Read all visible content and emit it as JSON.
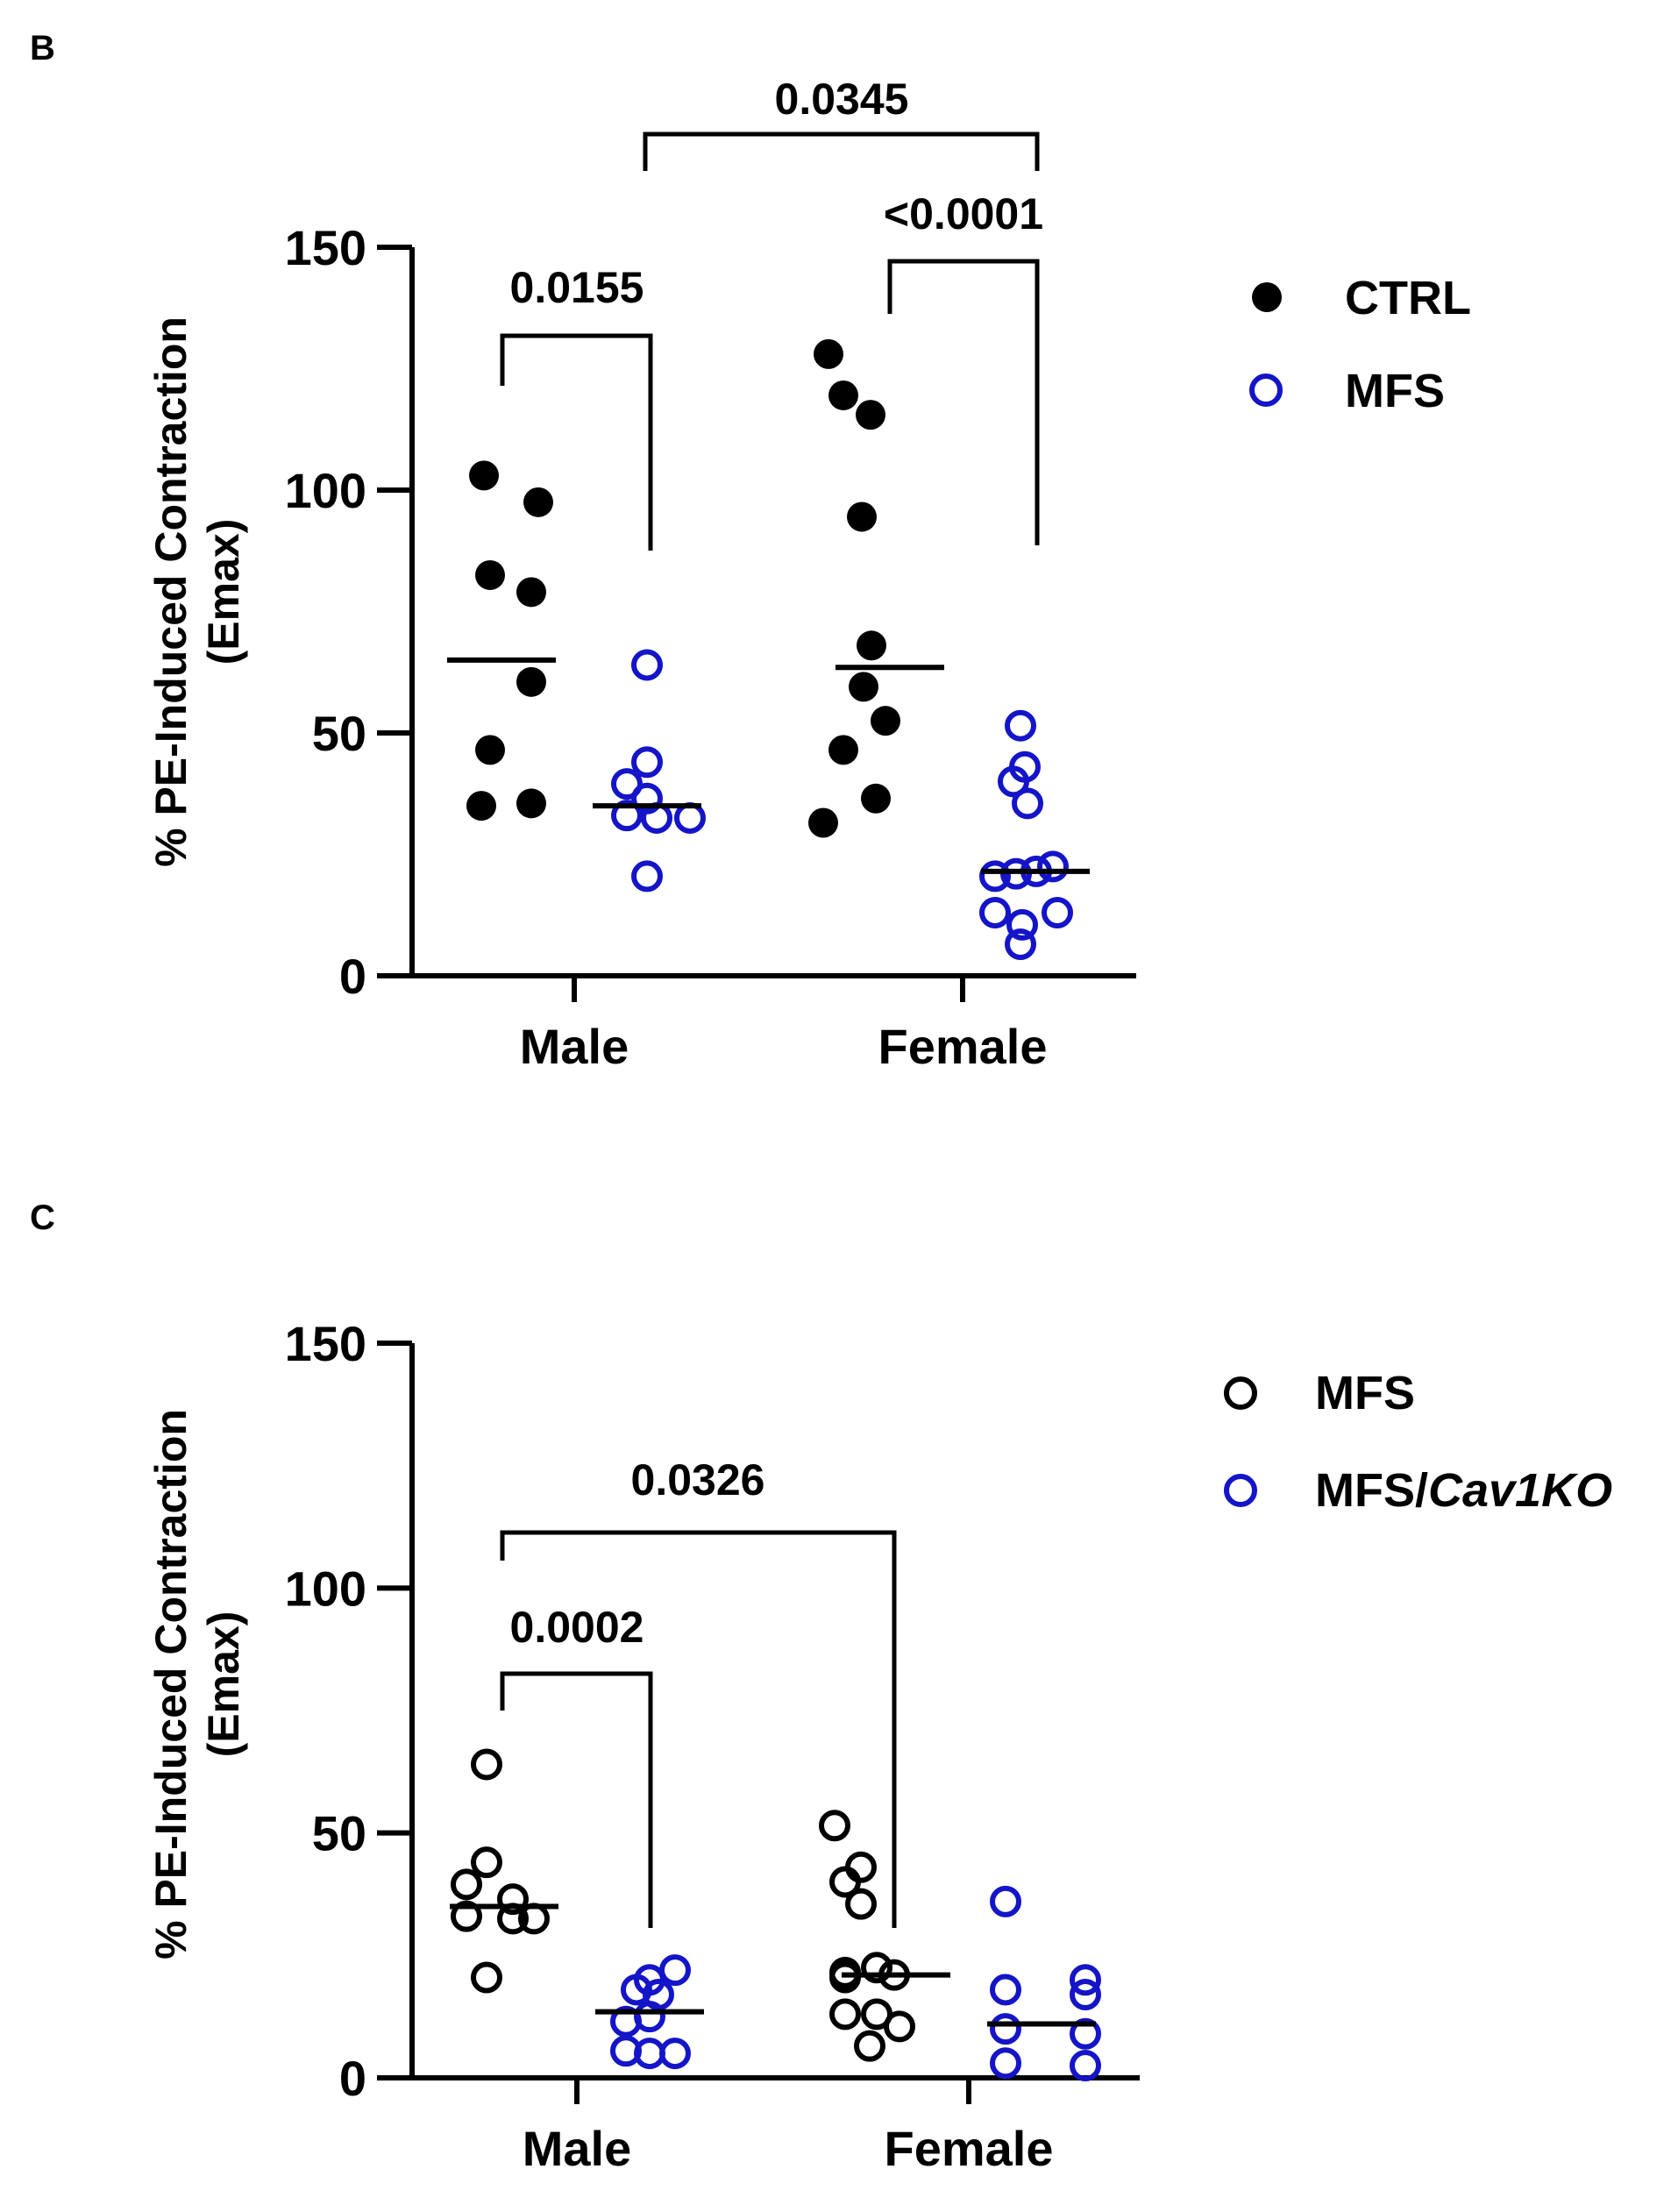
{
  "chart_data": [
    {
      "panel_label": "B",
      "type": "scatter",
      "ylabel_line1": "% PE-Induced Contraction",
      "ylabel_line2": "(Emax)",
      "ylim": [
        0,
        150
      ],
      "yticks": [
        0,
        50,
        100,
        150
      ],
      "categories": [
        "Male",
        "Female"
      ],
      "series": [
        {
          "name": "CTRL",
          "style": "filled",
          "color": "#000000",
          "groups": [
            {
              "category": "Male",
              "values": [
                103,
                97.5,
                82.5,
                79,
                60.5,
                46.5,
                35,
                35.5
              ],
              "mean": 65
            },
            {
              "category": "Female",
              "values": [
                128,
                119.5,
                115.5,
                94.5,
                68,
                59.5,
                52.5,
                46.5,
                36.5,
                31.5
              ],
              "mean": 63.5
            }
          ]
        },
        {
          "name": "MFS",
          "style": "open",
          "color": "#1414c8",
          "groups": [
            {
              "category": "Male",
              "values": [
                64,
                44,
                39.5,
                36.5,
                33,
                32.5,
                32.5,
                20.5
              ],
              "mean": 35
            },
            {
              "category": "Female",
              "values": [
                51.5,
                43,
                40,
                35.5,
                22.5,
                21.5,
                21,
                20.5,
                13,
                13,
                10.5,
                6.5
              ],
              "mean": 21.5
            }
          ]
        }
      ],
      "comparisons": [
        {
          "label": "0.0345",
          "from": "Male MFS",
          "to": "Female MFS"
        },
        {
          "label": "0.0155",
          "from": "Male CTRL",
          "to": "Male MFS"
        },
        {
          "label": "<0.0001",
          "from": "Female CTRL",
          "to": "Female MFS"
        }
      ]
    },
    {
      "panel_label": "C",
      "type": "scatter",
      "ylabel_line1": "% PE-Induced Contraction",
      "ylabel_line2": "(Emax)",
      "ylim": [
        0,
        150
      ],
      "yticks": [
        0,
        50,
        100,
        150
      ],
      "categories": [
        "Male",
        "Female"
      ],
      "series": [
        {
          "name": "MFS",
          "style": "open",
          "color": "#000000",
          "groups": [
            {
              "category": "Male",
              "values": [
                64,
                44,
                39.5,
                36.5,
                33,
                32.5,
                32.5,
                20.5
              ],
              "mean": 35
            },
            {
              "category": "Female",
              "values": [
                51.5,
                43,
                40,
                35.5,
                22.5,
                21.5,
                21,
                20.5,
                13,
                13,
                10.5,
                6.5
              ],
              "mean": 21
            }
          ]
        },
        {
          "name": "MFS/",
          "name_italic": "Cav1KO",
          "style": "open",
          "color": "#1414c8",
          "groups": [
            {
              "category": "Male",
              "values": [
                22,
                20,
                18,
                17,
                12.5,
                11.5,
                5.5,
                5,
                5
              ],
              "mean": 13.5
            },
            {
              "category": "Female",
              "values": [
                36,
                20,
                18,
                17,
                10,
                9,
                3,
                2.5
              ],
              "mean": 11
            }
          ]
        }
      ],
      "comparisons": [
        {
          "label": "0.0326",
          "from": "Male MFS",
          "to": "Female MFS"
        },
        {
          "label": "0.0002",
          "from": "Male MFS",
          "to": "Male MFS/Cav1KO"
        }
      ]
    }
  ]
}
